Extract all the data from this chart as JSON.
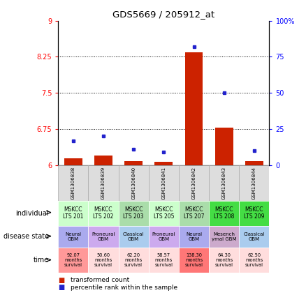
{
  "title": "GDS5669 / 205912_at",
  "samples": [
    "GSM1306838",
    "GSM1306839",
    "GSM1306840",
    "GSM1306841",
    "GSM1306842",
    "GSM1306843",
    "GSM1306844"
  ],
  "transformed_count": [
    6.15,
    6.2,
    6.08,
    6.07,
    8.35,
    6.78,
    6.08
  ],
  "percentile_rank": [
    17,
    20,
    11,
    9,
    82,
    50,
    10
  ],
  "ylim_left": [
    6.0,
    9.0
  ],
  "ylim_right": [
    0,
    100
  ],
  "yticks_left": [
    6,
    6.75,
    7.5,
    8.25,
    9
  ],
  "yticks_right": [
    0,
    25,
    50,
    75,
    100
  ],
  "bar_color": "#cc2200",
  "dot_color": "#2222cc",
  "individual": [
    "MSKCC\nLTS 201",
    "MSKCC\nLTS 202",
    "MSKCC\nLTS 203",
    "MSKCC\nLTS 205",
    "MSKCC\nLTS 207",
    "MSKCC\nLTS 208",
    "MSKCC\nLTS 209"
  ],
  "individual_colors": [
    "#ccffcc",
    "#ccffcc",
    "#aaddaa",
    "#ccffcc",
    "#aaddaa",
    "#44dd44",
    "#44dd44"
  ],
  "disease_state_line1": [
    "Neural",
    "Proneural",
    "Classical",
    "Proneural",
    "Neural",
    "Mesench",
    "Classical"
  ],
  "disease_state_line2": [
    "GBM",
    "GBM",
    "GBM",
    "GBM",
    "GBM",
    "ymal GBM",
    "GBM"
  ],
  "disease_state_colors": [
    "#aaaaee",
    "#ccaaee",
    "#aaccee",
    "#ccaaee",
    "#aaaaee",
    "#ccaacc",
    "#aaccee"
  ],
  "time_values": [
    "92.07\nmonths\nsurvival",
    "50.60\nmonths\nsurvival",
    "62.20\nmonths\nsurvival",
    "58.57\nmonths\nsurvival",
    "138.30\nmonths\nsurvival",
    "64.30\nmonths\nsurvival",
    "62.50\nmonths\nsurvival"
  ],
  "time_colors": [
    "#ff9999",
    "#ffdddd",
    "#ffdddd",
    "#ffdddd",
    "#ff7777",
    "#ffdddd",
    "#ffdddd"
  ],
  "row_labels": [
    "individual",
    "disease state",
    "time"
  ],
  "legend_bar_label": "transformed count",
  "legend_dot_label": "percentile rank within the sample"
}
